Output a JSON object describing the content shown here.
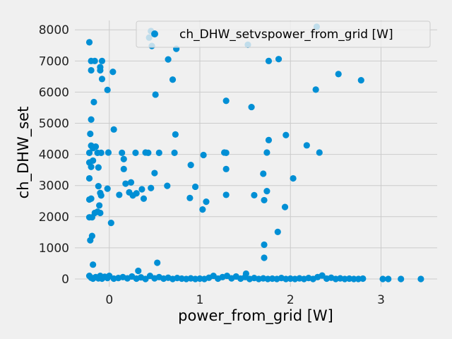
{
  "chart_data": {
    "type": "scatter",
    "xlabel": "power_from_grid [W]",
    "ylabel": "ch_DHW_set",
    "xlim": [
      -0.38,
      3.62
    ],
    "ylim": [
      -250,
      8300
    ],
    "xticks": [
      0,
      1,
      2,
      3
    ],
    "yticks": [
      0,
      1000,
      2000,
      3000,
      4000,
      5000,
      6000,
      7000,
      8000
    ],
    "grid": true,
    "legend_position": "top-right",
    "color": "#008fd5",
    "series": [
      {
        "name": "ch_DHW_setvspower_from_grid [W]",
        "points": [
          [
            -0.22,
            7600
          ],
          [
            -0.2,
            7000
          ],
          [
            -0.16,
            7000
          ],
          [
            -0.2,
            6700
          ],
          [
            -0.1,
            6800
          ],
          [
            -0.08,
            7000
          ],
          [
            -0.1,
            6700
          ],
          [
            -0.02,
            6070
          ],
          [
            0.04,
            6650
          ],
          [
            -0.08,
            6420
          ],
          [
            -0.17,
            5680
          ],
          [
            -0.2,
            5120
          ],
          [
            -0.21,
            4660
          ],
          [
            0.05,
            4800
          ],
          [
            -0.2,
            4280
          ],
          [
            -0.22,
            4050
          ],
          [
            -0.18,
            4200
          ],
          [
            -0.15,
            4250
          ],
          [
            -0.13,
            4050
          ],
          [
            -0.09,
            4050
          ],
          [
            -0.01,
            4060
          ],
          [
            0.14,
            4050
          ],
          [
            0.29,
            4050
          ],
          [
            0.4,
            4060
          ],
          [
            0.43,
            4050
          ],
          [
            0.55,
            4050
          ],
          [
            0.72,
            4050
          ],
          [
            -0.22,
            3740
          ],
          [
            -0.18,
            3800
          ],
          [
            -0.2,
            3600
          ],
          [
            -0.12,
            3580
          ],
          [
            0.16,
            3850
          ],
          [
            0.16,
            3530
          ],
          [
            -0.22,
            3230
          ],
          [
            -0.12,
            2980
          ],
          [
            0.18,
            3060
          ],
          [
            0.24,
            3100
          ],
          [
            0.5,
            3400
          ],
          [
            0.64,
            2990
          ],
          [
            -0.02,
            2900
          ],
          [
            -0.1,
            2760
          ],
          [
            -0.09,
            2680
          ],
          [
            0.11,
            2700
          ],
          [
            0.22,
            2780
          ],
          [
            0.26,
            2680
          ],
          [
            0.3,
            2750
          ],
          [
            0.36,
            2880
          ],
          [
            0.38,
            2580
          ],
          [
            0.46,
            2920
          ],
          [
            -0.22,
            2550
          ],
          [
            -0.2,
            2580
          ],
          [
            -0.11,
            2360
          ],
          [
            -0.16,
            2120
          ],
          [
            -0.13,
            2160
          ],
          [
            -0.1,
            2120
          ],
          [
            -0.22,
            1980
          ],
          [
            -0.19,
            1980
          ],
          [
            0.02,
            1800
          ],
          [
            -0.19,
            1380
          ],
          [
            -0.21,
            1240
          ],
          [
            -0.18,
            460
          ],
          [
            0.53,
            520
          ],
          [
            0.32,
            260
          ],
          [
            0.46,
            7960
          ],
          [
            0.44,
            7750
          ],
          [
            0.47,
            7480
          ],
          [
            0.74,
            7390
          ],
          [
            0.65,
            7050
          ],
          [
            0.7,
            6400
          ],
          [
            0.51,
            5920
          ],
          [
            0.73,
            4640
          ],
          [
            0.9,
            3660
          ],
          [
            0.95,
            2960
          ],
          [
            0.89,
            2600
          ],
          [
            1.04,
            3980
          ],
          [
            1.03,
            2230
          ],
          [
            1.07,
            2480
          ],
          [
            1.27,
            4060
          ],
          [
            1.29,
            4050
          ],
          [
            1.29,
            3530
          ],
          [
            1.29,
            2700
          ],
          [
            1.29,
            5720
          ],
          [
            1.53,
            7520
          ],
          [
            1.57,
            5520
          ],
          [
            1.6,
            2690
          ],
          [
            1.7,
            3380
          ],
          [
            1.71,
            2530
          ],
          [
            1.74,
            2820
          ],
          [
            1.74,
            4060
          ],
          [
            1.76,
            4460
          ],
          [
            1.71,
            1100
          ],
          [
            1.71,
            680
          ],
          [
            1.76,
            7000
          ],
          [
            1.87,
            7060
          ],
          [
            1.86,
            1510
          ],
          [
            1.94,
            2310
          ],
          [
            1.95,
            4620
          ],
          [
            2.03,
            3230
          ],
          [
            2.18,
            4290
          ],
          [
            2.28,
            6080
          ],
          [
            2.29,
            8100
          ],
          [
            2.32,
            4060
          ],
          [
            2.53,
            6580
          ],
          [
            2.78,
            6380
          ],
          [
            -0.22,
            100
          ],
          [
            -0.2,
            40
          ],
          [
            -0.18,
            10
          ],
          [
            -0.15,
            60
          ],
          [
            -0.12,
            20
          ],
          [
            -0.1,
            100
          ],
          [
            -0.08,
            10
          ],
          [
            -0.05,
            70
          ],
          [
            -0.02,
            30
          ],
          [
            0.0,
            100
          ],
          [
            0.05,
            10
          ],
          [
            0.1,
            30
          ],
          [
            0.15,
            60
          ],
          [
            0.2,
            20
          ],
          [
            0.25,
            80
          ],
          [
            0.3,
            10
          ],
          [
            0.35,
            50
          ],
          [
            0.4,
            0
          ],
          [
            0.45,
            100
          ],
          [
            0.5,
            20
          ],
          [
            0.55,
            60
          ],
          [
            0.6,
            10
          ],
          [
            0.65,
            40
          ],
          [
            0.7,
            0
          ],
          [
            0.75,
            30
          ],
          [
            0.8,
            10
          ],
          [
            0.85,
            0
          ],
          [
            0.9,
            20
          ],
          [
            0.95,
            0
          ],
          [
            1.0,
            10
          ],
          [
            1.05,
            0
          ],
          [
            1.1,
            40
          ],
          [
            1.15,
            100
          ],
          [
            1.2,
            10
          ],
          [
            1.25,
            60
          ],
          [
            1.3,
            100
          ],
          [
            1.35,
            20
          ],
          [
            1.4,
            80
          ],
          [
            1.45,
            10
          ],
          [
            1.5,
            60
          ],
          [
            1.51,
            170
          ],
          [
            1.55,
            0
          ],
          [
            1.6,
            30
          ],
          [
            1.65,
            0
          ],
          [
            1.7,
            20
          ],
          [
            1.75,
            0
          ],
          [
            1.8,
            10
          ],
          [
            1.85,
            0
          ],
          [
            1.9,
            30
          ],
          [
            1.95,
            0
          ],
          [
            2.0,
            10
          ],
          [
            2.05,
            0
          ],
          [
            2.1,
            20
          ],
          [
            2.15,
            0
          ],
          [
            2.2,
            30
          ],
          [
            2.25,
            0
          ],
          [
            2.3,
            60
          ],
          [
            2.35,
            110
          ],
          [
            2.4,
            10
          ],
          [
            2.45,
            40
          ],
          [
            2.5,
            0
          ],
          [
            2.55,
            20
          ],
          [
            2.6,
            0
          ],
          [
            2.65,
            10
          ],
          [
            2.7,
            0
          ],
          [
            2.75,
            0
          ],
          [
            2.8,
            10
          ],
          [
            3.02,
            0
          ],
          [
            3.08,
            0
          ],
          [
            3.22,
            0
          ],
          [
            3.44,
            0
          ]
        ]
      }
    ]
  }
}
